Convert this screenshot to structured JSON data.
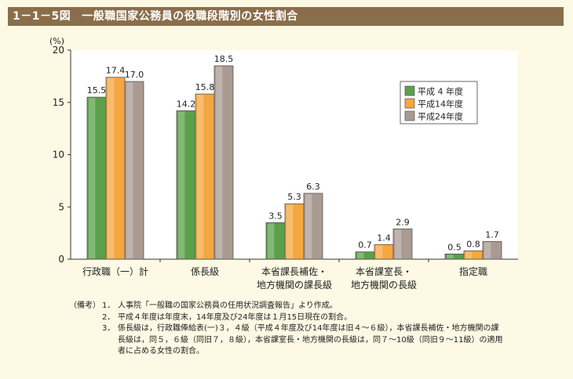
{
  "header": {
    "figure_number": "1－1－5図",
    "title": "一般職国家公務員の役職段階別の女性割合"
  },
  "chart_data": {
    "type": "bar",
    "ylabel": "(%)",
    "ylim": [
      0,
      20
    ],
    "yticks": [
      0,
      5,
      10,
      15,
      20
    ],
    "categories": [
      [
        "行政職（一）計"
      ],
      [
        "係長級"
      ],
      [
        "本省課長補佐・",
        "地方機関の課長級"
      ],
      [
        "本省課室長・",
        "地方機関の長級"
      ],
      [
        "指定職"
      ]
    ],
    "series": [
      {
        "name": "平成 4 年度",
        "values": [
          15.5,
          14.2,
          3.5,
          0.7,
          0.5
        ],
        "color": "#5aa04a"
      },
      {
        "name": "平成14年度",
        "values": [
          17.4,
          15.8,
          5.3,
          1.4,
          0.8
        ],
        "color": "#f4a640"
      },
      {
        "name": "平成24年度",
        "values": [
          17.0,
          18.5,
          6.3,
          2.9,
          1.7
        ],
        "color": "#a99a92"
      }
    ],
    "value_labels": [
      [
        "15.5",
        "17.4",
        "17.0"
      ],
      [
        "14.2",
        "15.8",
        "18.5"
      ],
      [
        "3.5",
        "5.3",
        "6.3"
      ],
      [
        "0.7",
        "1.4",
        "2.9"
      ],
      [
        "0.5",
        "0.8",
        "1.7"
      ]
    ],
    "legend_position": "top-right",
    "grid": false
  },
  "notes": {
    "label": "（備考）",
    "items": [
      {
        "num": "1．",
        "text": "人事院「一般職の国家公務員の任用状況調査報告」より作成。"
      },
      {
        "num": "2．",
        "text": "平成４年度は年度末，14年度及び24年度は１月15日現在の割合。"
      },
      {
        "num": "3．",
        "text": "係長級は，行政職俸給表(一)３，４級（平成４年度及び14年度は旧４～６級），本省課長補佐・地方機関の課\n長級は，同５，６級（同旧７，８級），本省課室長・地方機関の長級は，同７～10級（同旧９～11級）の適用\n者に占める女性の割合。"
      }
    ]
  }
}
